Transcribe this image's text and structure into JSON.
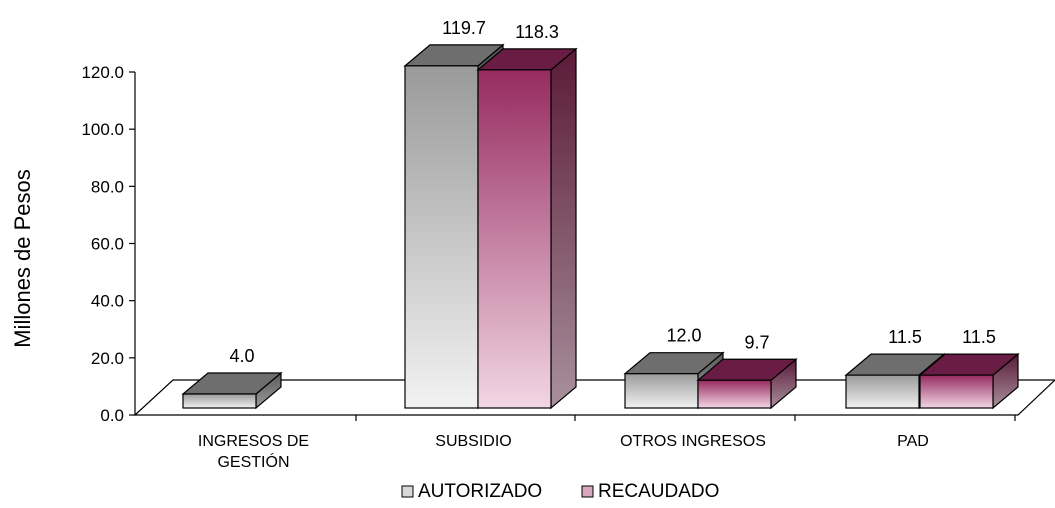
{
  "chart_data": {
    "type": "bar",
    "categories": [
      [
        "INGRESOS DE",
        "GESTIÓN"
      ],
      [
        "SUBSIDIO"
      ],
      [
        "OTROS INGRESOS"
      ],
      [
        "PAD"
      ]
    ],
    "series": [
      {
        "name": "AUTORIZADO",
        "values": [
          4.0,
          119.7,
          12.0,
          11.5
        ],
        "labels": [
          "4.0",
          "119.7",
          "12.0",
          "11.5"
        ],
        "color": "#c8c8c8"
      },
      {
        "name": "RECAUDADO",
        "values": [
          0,
          118.3,
          9.7,
          11.5
        ],
        "labels": [
          "",
          "118.3",
          "9.7",
          "11.5"
        ],
        "color": "#9b2f63"
      }
    ],
    "ylabel": "Millones de Pesos",
    "yticks": [
      "0.0",
      "20.0",
      "40.0",
      "60.0",
      "80.0",
      "100.0",
      "120.0"
    ],
    "ylim": [
      0,
      120
    ],
    "grid": false,
    "legend_position": "bottom",
    "three_d": true
  }
}
